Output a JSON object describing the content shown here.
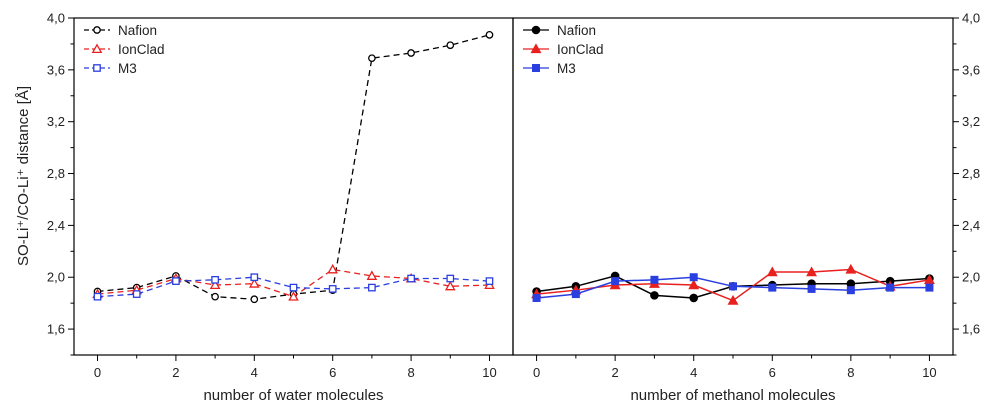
{
  "chart_data": [
    {
      "type": "line",
      "xlabel": "number of water molecules",
      "ylabel": "SO-Li⁺/CO-Li⁺ distance [Å]",
      "xlim": [
        -0.6,
        10.6
      ],
      "ylim": [
        1.4,
        4.0
      ],
      "x_ticks": [
        "0",
        "2",
        "4",
        "6",
        "8",
        "10"
      ],
      "y_ticks": [
        "1,6",
        "2,0",
        "2,4",
        "2,8",
        "3,2",
        "3,6",
        "4,0"
      ],
      "legend_position": "top-left",
      "line_style": "dashed",
      "marker_fill": "open",
      "x": [
        0,
        1,
        2,
        3,
        4,
        5,
        6,
        7,
        8,
        9,
        10
      ],
      "series": [
        {
          "name": "Nafion",
          "color": "#000000",
          "marker": "circle",
          "values": [
            1.89,
            1.92,
            2.01,
            1.85,
            1.83,
            1.87,
            1.9,
            3.69,
            3.73,
            3.79,
            3.87
          ]
        },
        {
          "name": "IonClad",
          "color": "#e8201e",
          "marker": "triangle",
          "values": [
            1.87,
            1.9,
            1.99,
            1.94,
            1.95,
            1.85,
            2.06,
            2.01,
            1.99,
            1.93,
            1.94
          ]
        },
        {
          "name": "M3",
          "color": "#2a3fe0",
          "marker": "square",
          "values": [
            1.85,
            1.87,
            1.97,
            1.98,
            2.0,
            1.92,
            1.91,
            1.92,
            1.99,
            1.99,
            1.97
          ]
        }
      ]
    },
    {
      "type": "line",
      "xlabel": "number of methanol molecules",
      "ylabel": "",
      "xlim": [
        -0.6,
        10.6
      ],
      "ylim": [
        1.4,
        4.0
      ],
      "x_ticks": [
        "0",
        "2",
        "4",
        "6",
        "8",
        "10"
      ],
      "y_ticks": [
        "1,6",
        "2,0",
        "2,4",
        "2,8",
        "3,2",
        "3,6",
        "4,0"
      ],
      "legend_position": "top-left",
      "line_style": "solid",
      "marker_fill": "filled",
      "x": [
        0,
        1,
        2,
        3,
        4,
        5,
        6,
        7,
        8,
        9,
        10
      ],
      "series": [
        {
          "name": "Nafion",
          "color": "#000000",
          "marker": "circle",
          "values": [
            1.89,
            1.93,
            2.01,
            1.86,
            1.84,
            1.93,
            1.94,
            1.95,
            1.95,
            1.97,
            1.99
          ]
        },
        {
          "name": "IonClad",
          "color": "#e8201e",
          "marker": "triangle",
          "values": [
            1.87,
            1.9,
            1.94,
            1.95,
            1.94,
            1.82,
            2.04,
            2.04,
            2.06,
            1.93,
            1.98
          ]
        },
        {
          "name": "M3",
          "color": "#2a3fe0",
          "marker": "square",
          "values": [
            1.84,
            1.87,
            1.97,
            1.98,
            2.0,
            1.93,
            1.92,
            1.91,
            1.9,
            1.92,
            1.92
          ]
        }
      ]
    }
  ]
}
